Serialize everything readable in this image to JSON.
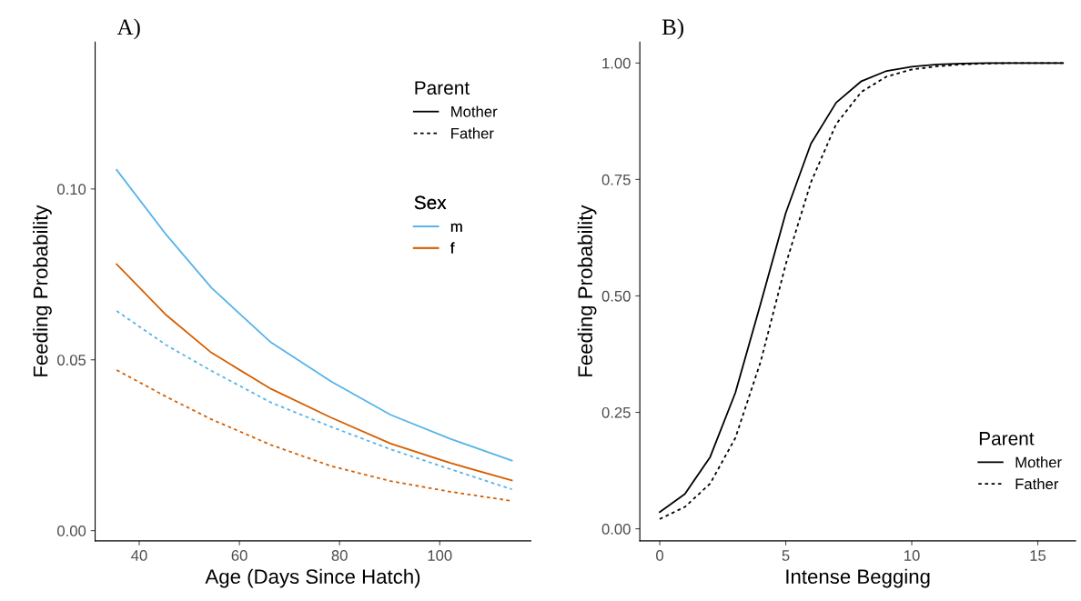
{
  "chart_data": [
    {
      "type": "line",
      "title": "A)",
      "xlabel": "Age (Days Since Hatch)",
      "ylabel": "Feeding Probability",
      "x": [
        35.5,
        45.4,
        54.4,
        66.3,
        78.3,
        90.2,
        102.1,
        114.4
      ],
      "xlim": [
        31.2,
        118.2
      ],
      "xticks": [
        40,
        60,
        80,
        100
      ],
      "ylim": [
        -0.003,
        0.143
      ],
      "yticks": [
        {
          "value": 0,
          "label": "0.00"
        },
        {
          "value": 0.05,
          "label": "0.05"
        },
        {
          "value": 0.1,
          "label": "0.10"
        }
      ],
      "grid": false,
      "legend": "top right",
      "legend_title": "Parent",
      "annotations": [
        "Sex"
      ],
      "series": [
        {
          "name": "Mother",
          "color": "#000000",
          "line_style": "solid",
          "values": [
            null,
            null,
            null,
            null,
            null,
            null,
            null,
            null
          ]
        },
        {
          "name": "Father",
          "color": "#000000",
          "line_style": "dotted",
          "values": [
            null,
            null,
            null,
            null,
            null,
            null,
            null,
            null
          ]
        },
        {
          "name": "m",
          "color": "#56b4e9",
          "line_style": "solid",
          "values": [
            null,
            null,
            null,
            null,
            null,
            null,
            null,
            null
          ]
        },
        {
          "name": "f",
          "color": "#d55e00",
          "line_style": "solid",
          "values": [
            null,
            null,
            null,
            null,
            null,
            null,
            null,
            null
          ]
        },
        {
          "color": "#56b4e9",
          "line_style": "solid",
          "values": [
            0.1056,
            0.0866,
            0.0711,
            0.0551,
            0.0437,
            0.0339,
            0.0269,
            0.0205
          ]
        },
        {
          "color": "#d55e00",
          "line_style": "solid",
          "values": [
            0.078,
            0.0631,
            0.0521,
            0.0415,
            0.0331,
            0.0255,
            0.0198,
            0.0147
          ]
        },
        {
          "color": "#56b4e9",
          "line_style": "dotted",
          "values": [
            0.0643,
            0.0543,
            0.0468,
            0.0375,
            0.0304,
            0.0238,
            0.018,
            0.0121
          ]
        },
        {
          "color": "#d55e00",
          "line_style": "dotted",
          "values": [
            0.047,
            0.0392,
            0.0326,
            0.0251,
            0.0189,
            0.0145,
            0.0114,
            0.0087
          ]
        }
      ]
    },
    {
      "type": "line",
      "title": "B)",
      "xlabel": "Intense Begging",
      "ylabel": "Feeding Probability",
      "x": [
        0,
        1,
        2,
        3,
        4,
        5,
        6,
        7,
        8,
        9,
        10,
        11,
        12,
        13,
        14,
        15,
        16
      ],
      "xlim": [
        -0.79,
        16.5
      ],
      "xticks": [
        0,
        5,
        10,
        15
      ],
      "ylim": [
        -0.026,
        1.045
      ],
      "yticks": [
        {
          "value": 0,
          "label": "0.00"
        },
        {
          "value": 0.25,
          "label": "0.25"
        },
        {
          "value": 0.5,
          "label": "0.50"
        },
        {
          "value": 0.75,
          "label": "0.75"
        },
        {
          "value": 1,
          "label": "1.00"
        }
      ],
      "grid": false,
      "legend": "bottom right",
      "legend_title": "Parent",
      "series": [
        {
          "name": "Mother",
          "color": "#000000",
          "line_style": "solid",
          "values": [
            0.036,
            0.075,
            0.154,
            0.292,
            0.483,
            0.678,
            0.827,
            0.915,
            0.961,
            0.983,
            0.992,
            0.997,
            0.999,
            1.0,
            1.0,
            1.0,
            1.0
          ]
        },
        {
          "name": "Father",
          "color": "#000000",
          "line_style": "dotted",
          "values": [
            0.021,
            0.047,
            0.097,
            0.195,
            0.358,
            0.568,
            0.744,
            0.869,
            0.938,
            0.971,
            0.986,
            0.993,
            0.997,
            0.999,
            1.0,
            1.0,
            1.0
          ]
        }
      ]
    }
  ]
}
